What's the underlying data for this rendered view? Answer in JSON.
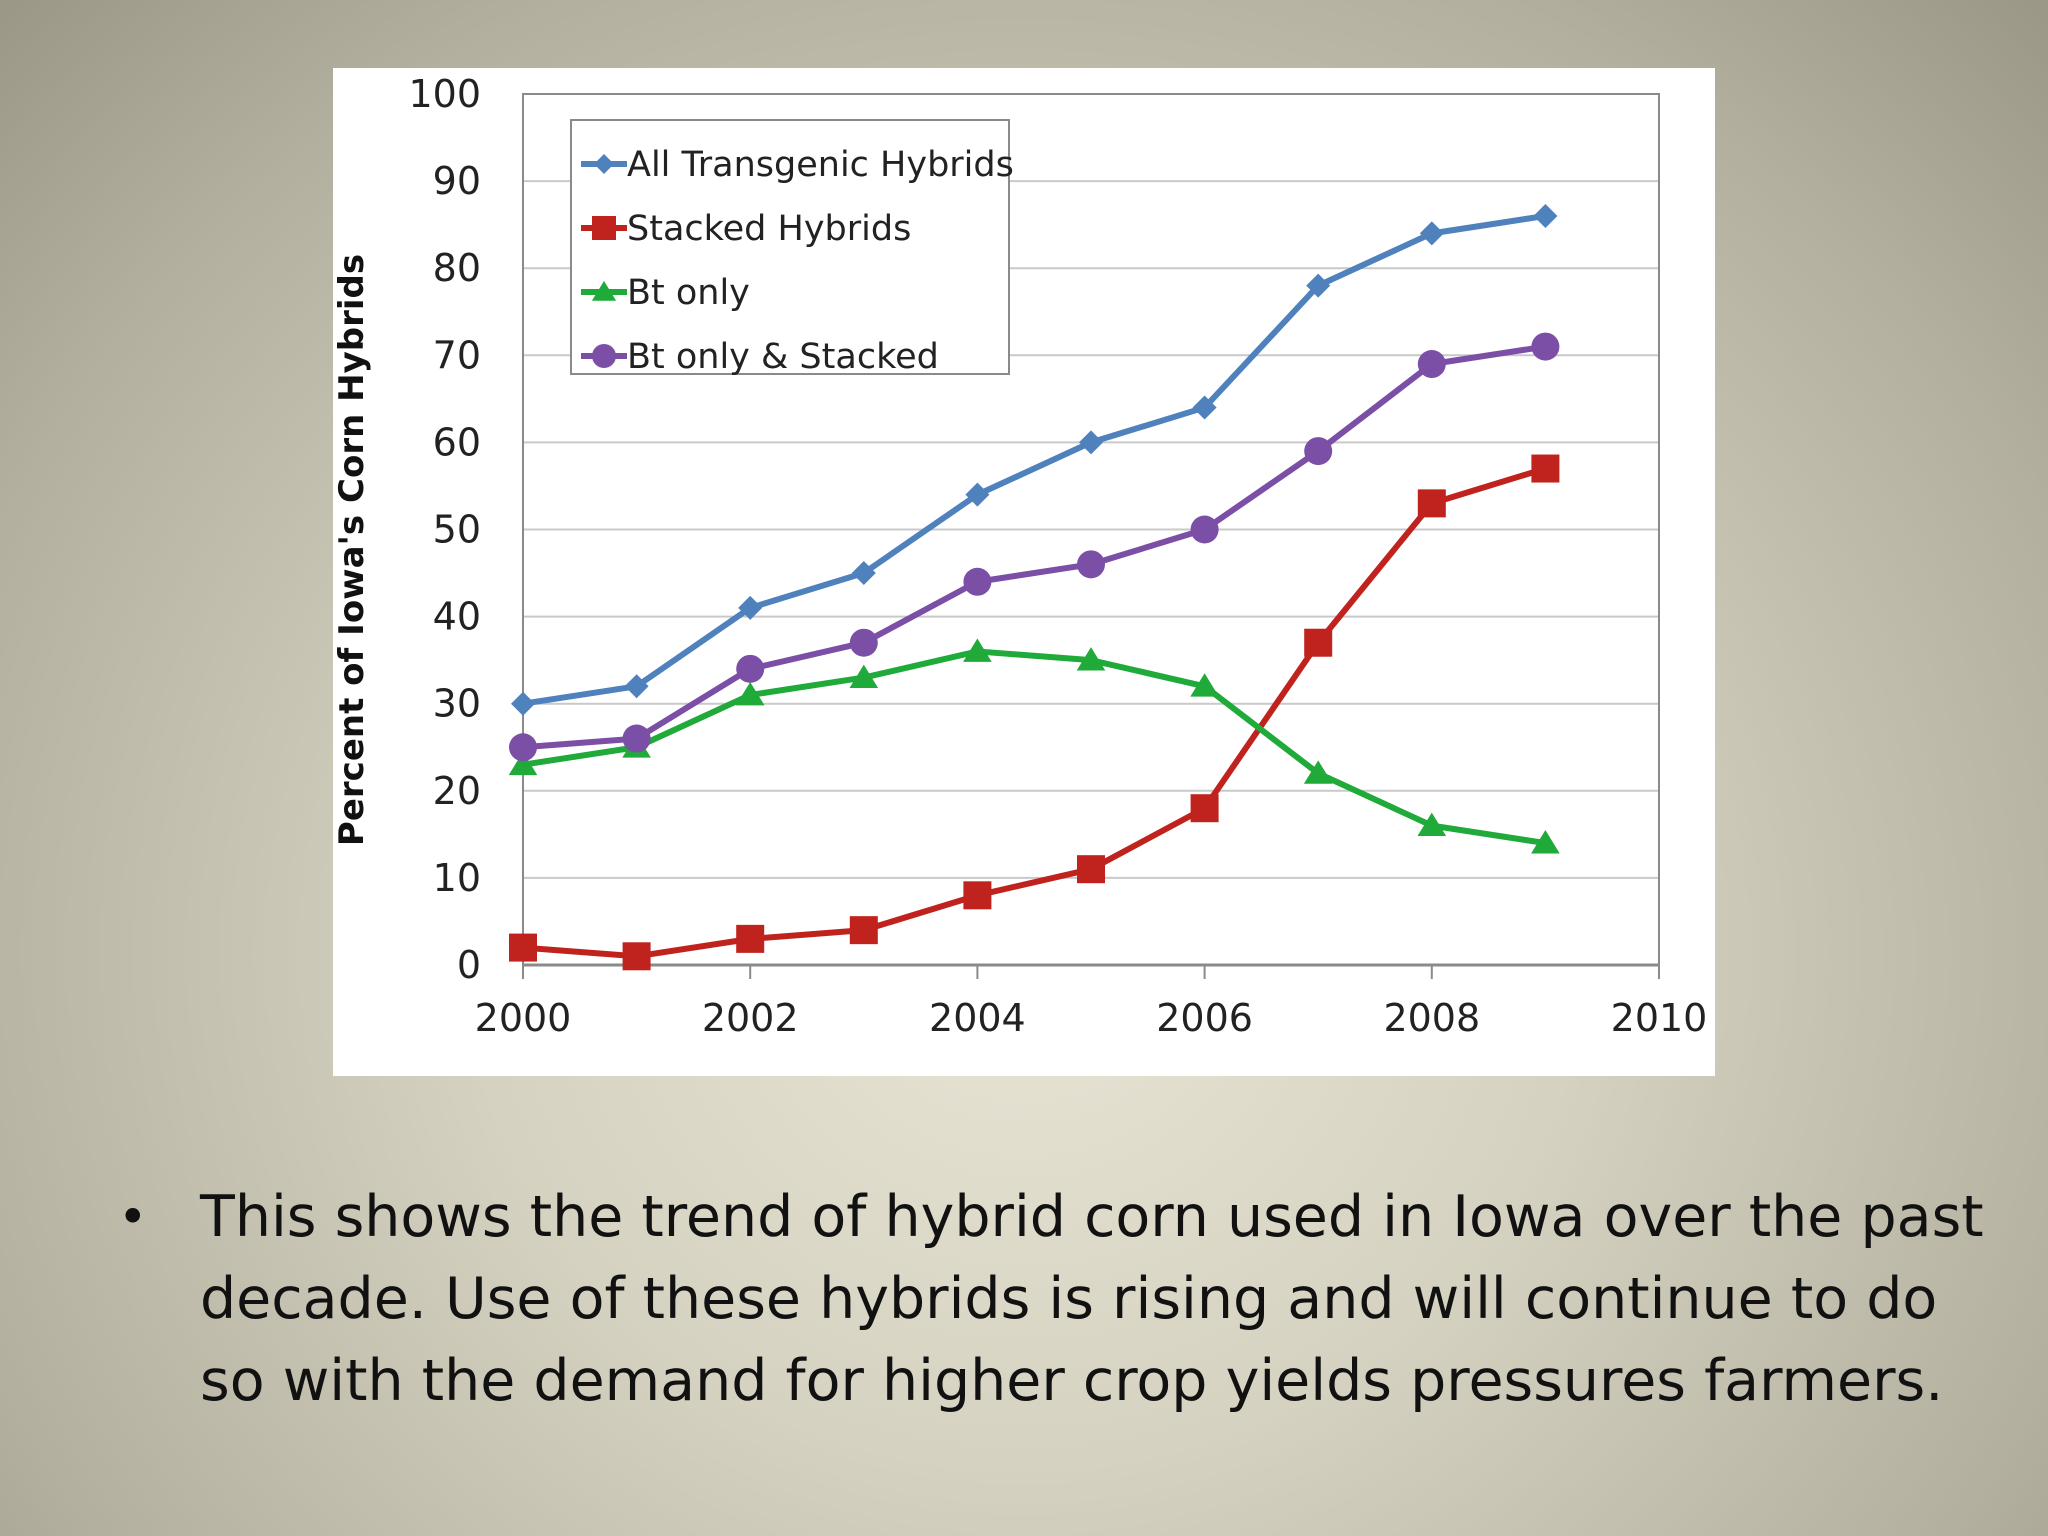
{
  "chart_data": {
    "type": "line",
    "title": "",
    "xlabel": "",
    "ylabel": "Percent of Iowa's Corn Hybrids",
    "xlim": [
      2000,
      2010
    ],
    "ylim": [
      0,
      100
    ],
    "xticks": [
      "2000",
      "2002",
      "2004",
      "2006",
      "2008",
      "2010"
    ],
    "yticks": [
      "0",
      "10",
      "20",
      "30",
      "40",
      "50",
      "60",
      "70",
      "80",
      "90",
      "100"
    ],
    "grid": "horizontal",
    "legend_position": "top-left",
    "x": [
      2000,
      2001,
      2002,
      2003,
      2004,
      2005,
      2006,
      2007,
      2008,
      2009
    ],
    "series": [
      {
        "name": "All Transgenic Hybrids",
        "color": "#4f81bd",
        "marker": "diamond",
        "values": [
          30,
          32,
          41,
          45,
          54,
          60,
          64,
          78,
          84,
          86
        ]
      },
      {
        "name": "Stacked Hybrids",
        "color": "#c0231d",
        "marker": "square",
        "values": [
          2,
          1,
          3,
          4,
          8,
          11,
          18,
          37,
          53,
          57
        ]
      },
      {
        "name": "Bt only",
        "color": "#1faa3a",
        "marker": "triangle",
        "values": [
          23,
          25,
          31,
          33,
          36,
          35,
          32,
          22,
          16,
          14
        ]
      },
      {
        "name": "Bt only & Stacked",
        "color": "#7b4fa6",
        "marker": "circle",
        "values": [
          25,
          26,
          34,
          37,
          44,
          46,
          50,
          59,
          69,
          71
        ]
      }
    ]
  },
  "bullet": {
    "symbol": "•",
    "text": "This shows the trend of hybrid corn used in Iowa over the past decade. Use of these hybrids is rising and will continue to do so with the demand for higher crop yields pressures farmers."
  }
}
